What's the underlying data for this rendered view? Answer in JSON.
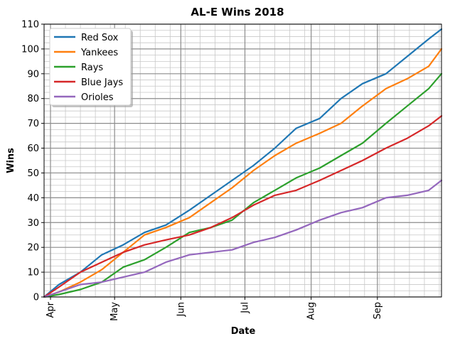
{
  "chart_data": {
    "type": "line",
    "title": "AL-E Wins 2018",
    "xlabel": "Date",
    "ylabel": "Wins",
    "x_range": [
      "2018-03-29",
      "2018-10-01"
    ],
    "ylim": [
      0,
      110
    ],
    "y_ticks": [
      0,
      10,
      20,
      30,
      40,
      50,
      60,
      70,
      80,
      90,
      100,
      110
    ],
    "x_ticks": [
      {
        "label": "Apr",
        "date": "2018-04-01"
      },
      {
        "label": "May",
        "date": "2018-05-01"
      },
      {
        "label": "Jun",
        "date": "2018-06-01"
      },
      {
        "label": "Jul",
        "date": "2018-07-01"
      },
      {
        "label": "Aug",
        "date": "2018-08-01"
      },
      {
        "label": "Sep",
        "date": "2018-09-01"
      }
    ],
    "grid": true,
    "legend": "top-left",
    "series": [
      {
        "name": "Red Sox",
        "color": "#1f77b4",
        "x": [
          "2018-03-29",
          "2018-04-05",
          "2018-04-15",
          "2018-04-25",
          "2018-05-05",
          "2018-05-15",
          "2018-05-25",
          "2018-06-05",
          "2018-06-15",
          "2018-06-25",
          "2018-07-05",
          "2018-07-15",
          "2018-07-25",
          "2018-08-05",
          "2018-08-15",
          "2018-08-25",
          "2018-09-05",
          "2018-09-15",
          "2018-09-25",
          "2018-10-01"
        ],
        "values": [
          0,
          5,
          10,
          17,
          21,
          26,
          29,
          35,
          41,
          47,
          53,
          60,
          68,
          72,
          80,
          86,
          90,
          97,
          104,
          108
        ]
      },
      {
        "name": "Yankees",
        "color": "#ff7f0e",
        "x": [
          "2018-03-29",
          "2018-04-05",
          "2018-04-15",
          "2018-04-25",
          "2018-05-05",
          "2018-05-15",
          "2018-05-25",
          "2018-06-05",
          "2018-06-15",
          "2018-06-25",
          "2018-07-05",
          "2018-07-15",
          "2018-07-25",
          "2018-08-05",
          "2018-08-15",
          "2018-08-25",
          "2018-09-05",
          "2018-09-15",
          "2018-09-25",
          "2018-10-01"
        ],
        "values": [
          0,
          2,
          6,
          11,
          18,
          25,
          28,
          32,
          38,
          44,
          51,
          57,
          62,
          66,
          70,
          77,
          84,
          88,
          93,
          100
        ]
      },
      {
        "name": "Rays",
        "color": "#2ca02c",
        "x": [
          "2018-03-29",
          "2018-04-05",
          "2018-04-15",
          "2018-04-25",
          "2018-05-05",
          "2018-05-15",
          "2018-05-25",
          "2018-06-05",
          "2018-06-15",
          "2018-06-25",
          "2018-07-05",
          "2018-07-15",
          "2018-07-25",
          "2018-08-05",
          "2018-08-15",
          "2018-08-25",
          "2018-09-05",
          "2018-09-15",
          "2018-09-25",
          "2018-10-01"
        ],
        "values": [
          0,
          1,
          3,
          6,
          12,
          15,
          20,
          26,
          28,
          31,
          38,
          43,
          48,
          52,
          57,
          62,
          70,
          77,
          84,
          90
        ]
      },
      {
        "name": "Blue Jays",
        "color": "#d62728",
        "x": [
          "2018-03-29",
          "2018-04-05",
          "2018-04-15",
          "2018-04-25",
          "2018-05-05",
          "2018-05-15",
          "2018-05-25",
          "2018-06-05",
          "2018-06-15",
          "2018-06-25",
          "2018-07-05",
          "2018-07-15",
          "2018-07-25",
          "2018-08-05",
          "2018-08-15",
          "2018-08-25",
          "2018-09-05",
          "2018-09-15",
          "2018-09-25",
          "2018-10-01"
        ],
        "values": [
          0,
          4,
          10,
          14,
          18,
          21,
          23,
          25,
          28,
          32,
          37,
          41,
          43,
          47,
          51,
          55,
          60,
          64,
          69,
          73
        ]
      },
      {
        "name": "Orioles",
        "color": "#9467bd",
        "x": [
          "2018-03-29",
          "2018-04-05",
          "2018-04-15",
          "2018-04-25",
          "2018-05-05",
          "2018-05-15",
          "2018-05-25",
          "2018-06-05",
          "2018-06-15",
          "2018-06-25",
          "2018-07-05",
          "2018-07-15",
          "2018-07-25",
          "2018-08-05",
          "2018-08-15",
          "2018-08-25",
          "2018-09-05",
          "2018-09-15",
          "2018-09-25",
          "2018-10-01"
        ],
        "values": [
          0,
          2,
          5,
          6,
          8,
          10,
          14,
          17,
          18,
          19,
          22,
          24,
          27,
          31,
          34,
          36,
          40,
          41,
          43,
          47
        ]
      }
    ]
  }
}
